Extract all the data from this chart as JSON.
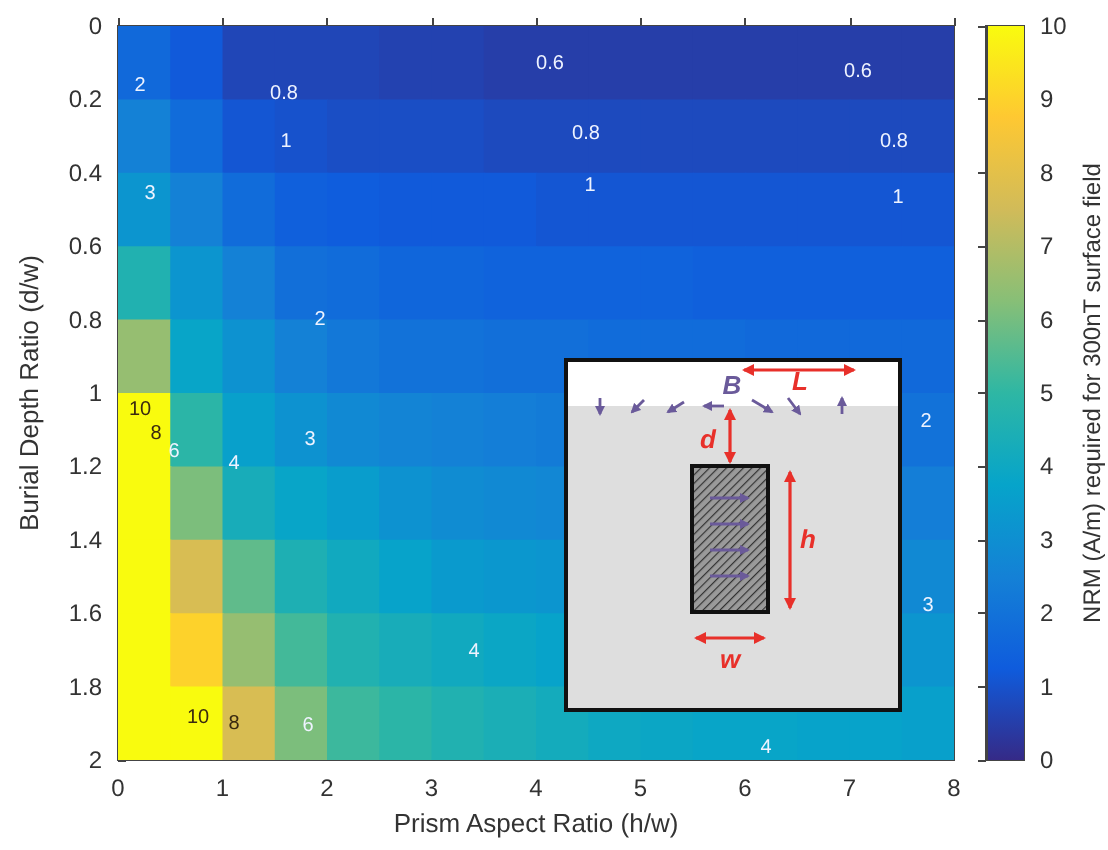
{
  "chart_data": {
    "type": "heatmap",
    "xlabel": "Prism Aspect Ratio (h/w)",
    "ylabel": "Burial Depth Ratio (d/w)",
    "clabel": "NRM (A/m) required for 300nT surface field",
    "x": [
      0.25,
      0.75,
      1.25,
      1.75,
      2.25,
      2.75,
      3.25,
      3.75,
      4.25,
      4.75,
      5.25,
      5.75,
      6.25,
      6.75,
      7.25,
      7.75
    ],
    "xlim": [
      0,
      8
    ],
    "xticks": [
      0,
      1,
      2,
      3,
      4,
      5,
      6,
      7,
      8
    ],
    "ylim": [
      2,
      0
    ],
    "yticks": [
      0,
      0.2,
      0.4,
      0.6,
      0.8,
      1,
      1.2,
      1.4,
      1.6,
      1.8,
      2
    ],
    "clim": [
      0,
      10
    ],
    "cticks": [
      0,
      1,
      2,
      3,
      4,
      5,
      6,
      7,
      8,
      9,
      10
    ],
    "colors": [
      "#352a87",
      "#0f5cdd",
      "#1481d6",
      "#06a4ca",
      "#2eb7a4",
      "#87bf77",
      "#d1bb59",
      "#fec832",
      "#f9fb0e"
    ],
    "cells": [
      [
        1.7,
        1.2,
        0.7,
        0.7,
        0.7,
        0.6,
        0.6,
        0.5,
        0.5,
        0.5,
        0.5,
        0.5,
        0.5,
        0.5,
        0.5,
        0.5
      ],
      [
        2.5,
        1.8,
        1.1,
        1.0,
        0.9,
        0.9,
        0.9,
        0.8,
        0.8,
        0.8,
        0.8,
        0.8,
        0.8,
        0.8,
        0.8,
        0.8
      ],
      [
        3.2,
        2.5,
        1.8,
        1.4,
        1.3,
        1.2,
        1.2,
        1.2,
        1.1,
        1.1,
        1.1,
        1.1,
        1.1,
        1.1,
        1.1,
        1.1
      ],
      [
        4.6,
        3.2,
        2.5,
        1.9,
        1.8,
        1.6,
        1.6,
        1.5,
        1.5,
        1.5,
        1.5,
        1.4,
        1.4,
        1.4,
        1.4,
        1.4
      ],
      [
        6.5,
        3.8,
        3.1,
        2.5,
        2.2,
        2.0,
        2.0,
        1.9,
        1.9,
        1.8,
        1.8,
        1.8,
        1.7,
        1.7,
        1.7,
        1.7
      ],
      [
        10,
        4.9,
        3.6,
        3.1,
        2.8,
        2.6,
        2.5,
        2.4,
        2.3,
        null,
        null,
        null,
        null,
        null,
        null,
        2.0
      ],
      [
        10,
        6.1,
        4.3,
        3.8,
        3.5,
        3.1,
        2.9,
        2.8,
        2.7,
        null,
        null,
        null,
        null,
        null,
        null,
        2.4
      ],
      [
        10,
        7.7,
        5.7,
        4.5,
        4.1,
        3.7,
        3.4,
        3.3,
        3.2,
        null,
        null,
        null,
        null,
        null,
        null,
        2.8
      ],
      [
        10,
        9.0,
        6.5,
        5.3,
        4.6,
        4.3,
        4.1,
        3.9,
        3.7,
        null,
        null,
        null,
        null,
        null,
        null,
        3.2
      ],
      [
        10,
        10,
        7.7,
        6.1,
        5.2,
        4.9,
        4.6,
        4.4,
        4.2,
        4.0,
        3.9,
        3.8,
        3.8,
        3.7,
        3.7,
        3.6
      ]
    ],
    "annotations": [
      "B",
      "L",
      "d",
      "h",
      "w",
      "0.6",
      "0.6",
      "0.8",
      "0.8",
      "0.8",
      "1",
      "1",
      "1",
      "2",
      "2",
      "2",
      "3",
      "3",
      "3",
      "4",
      "4",
      "4",
      "6",
      "6",
      "8",
      "8",
      "10",
      "10"
    ]
  }
}
